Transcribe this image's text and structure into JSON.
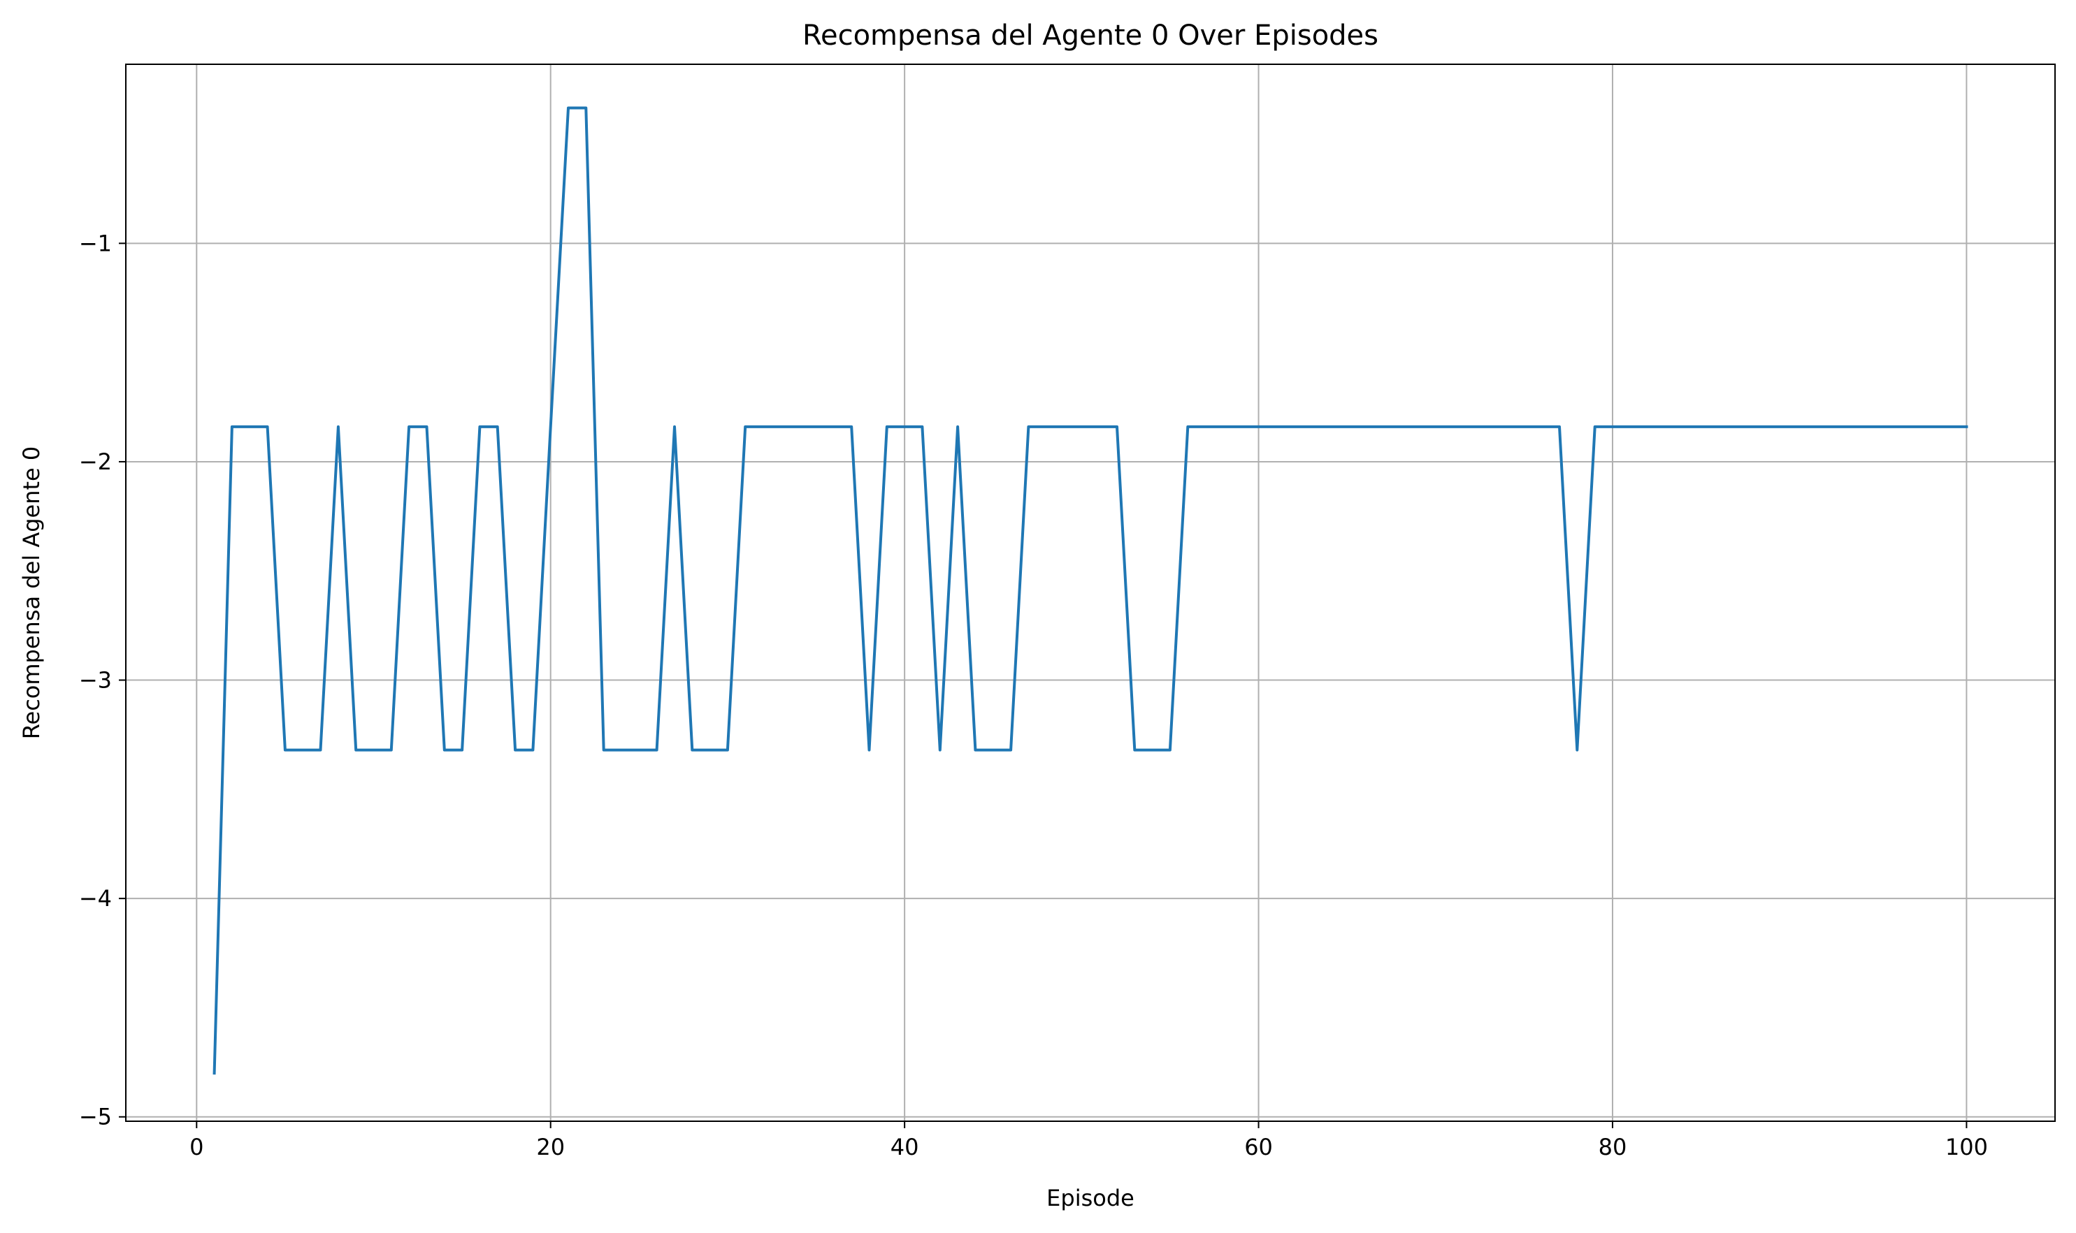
{
  "chart_data": {
    "type": "line",
    "title": "Recompensa del Agente 0 Over Episodes",
    "xlabel": "Episode",
    "ylabel": "Recompensa del Agente 0",
    "xlim": [
      -4,
      105
    ],
    "ylim": [
      -5.02,
      -0.18
    ],
    "xticks": [
      0,
      20,
      40,
      60,
      80,
      100
    ],
    "xtick_labels": [
      "0",
      "20",
      "40",
      "60",
      "80",
      "100"
    ],
    "yticks": [
      -5,
      -4,
      -3,
      -2,
      -1
    ],
    "ytick_labels": [
      "−5",
      "−4",
      "−3",
      "−2",
      "−1"
    ],
    "grid": true,
    "series": [
      {
        "color": "#1f77b4",
        "x": [
          1,
          2,
          3,
          4,
          5,
          6,
          7,
          8,
          9,
          10,
          11,
          12,
          13,
          14,
          15,
          16,
          17,
          18,
          19,
          20,
          21,
          22,
          23,
          24,
          25,
          26,
          27,
          28,
          29,
          30,
          31,
          32,
          33,
          34,
          35,
          36,
          37,
          38,
          39,
          40,
          41,
          42,
          43,
          44,
          45,
          46,
          47,
          48,
          49,
          50,
          51,
          52,
          53,
          54,
          55,
          56,
          57,
          58,
          59,
          60,
          61,
          62,
          63,
          64,
          65,
          66,
          67,
          68,
          69,
          70,
          71,
          72,
          73,
          74,
          75,
          76,
          77,
          78,
          79,
          80,
          81,
          82,
          83,
          84,
          85,
          86,
          87,
          88,
          89,
          90,
          91,
          92,
          93,
          94,
          95,
          96,
          97,
          98,
          99,
          100
        ],
        "y": [
          -4.8,
          -1.84,
          -1.84,
          -1.84,
          -3.32,
          -3.32,
          -3.32,
          -1.84,
          -3.32,
          -3.32,
          -3.32,
          -1.84,
          -1.84,
          -3.32,
          -3.32,
          -1.84,
          -1.84,
          -3.32,
          -3.32,
          -1.84,
          -0.38,
          -0.38,
          -3.32,
          -3.32,
          -3.32,
          -3.32,
          -1.84,
          -3.32,
          -3.32,
          -3.32,
          -1.84,
          -1.84,
          -1.84,
          -1.84,
          -1.84,
          -1.84,
          -1.84,
          -3.32,
          -1.84,
          -1.84,
          -1.84,
          -3.32,
          -1.84,
          -3.32,
          -3.32,
          -3.32,
          -1.84,
          -1.84,
          -1.84,
          -1.84,
          -1.84,
          -1.84,
          -3.32,
          -3.32,
          -3.32,
          -1.84,
          -1.84,
          -1.84,
          -1.84,
          -1.84,
          -1.84,
          -1.84,
          -1.84,
          -1.84,
          -1.84,
          -1.84,
          -1.84,
          -1.84,
          -1.84,
          -1.84,
          -1.84,
          -1.84,
          -1.84,
          -1.84,
          -1.84,
          -1.84,
          -1.84,
          -3.32,
          -1.84,
          -1.84,
          -1.84,
          -1.84,
          -1.84,
          -1.84,
          -1.84,
          -1.84,
          -1.84,
          -1.84,
          -1.84,
          -1.84,
          -1.84,
          -1.84,
          -1.84,
          -1.84,
          -1.84,
          -1.84,
          -1.84,
          -1.84,
          -1.84,
          -1.84
        ]
      }
    ]
  }
}
